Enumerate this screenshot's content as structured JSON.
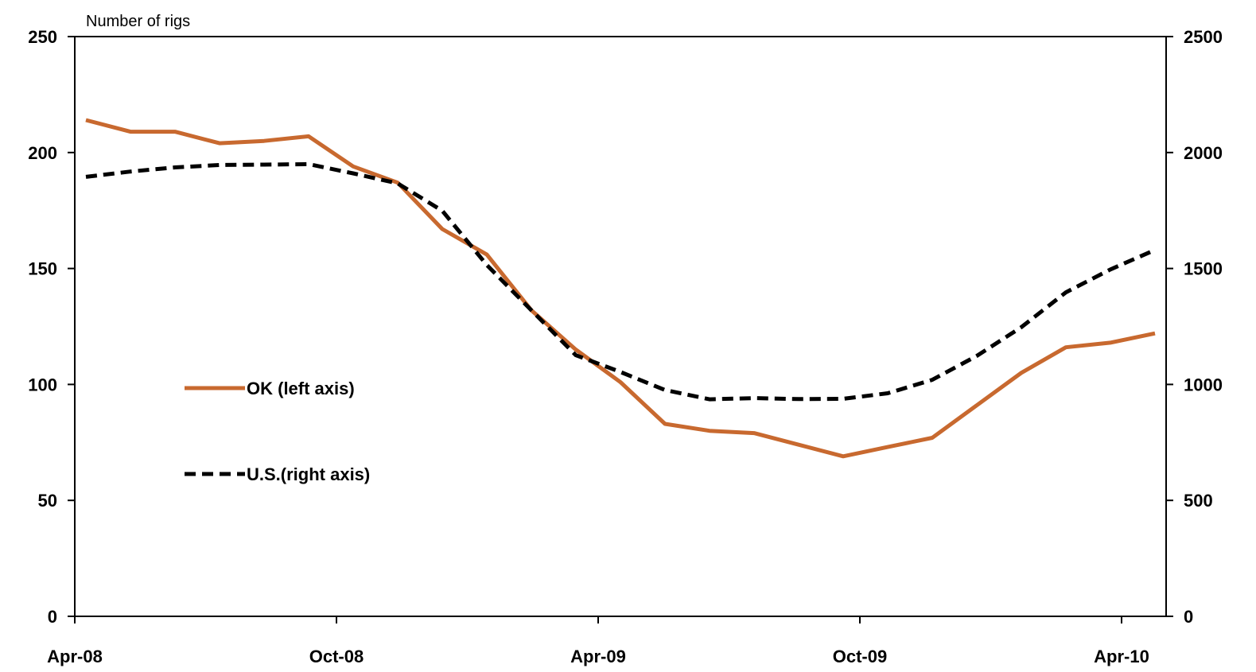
{
  "chart_data": {
    "type": "line",
    "title": "",
    "ylabel_left": "Number of rigs",
    "ylim_left": [
      0,
      250
    ],
    "yticks_left": [
      0,
      50,
      100,
      150,
      200,
      250
    ],
    "ylim_right": [
      0,
      2500
    ],
    "yticks_right": [
      0,
      500,
      1000,
      1500,
      2000,
      2500
    ],
    "x_tick_labels": [
      "Apr-08",
      "Oct-08",
      "Apr-09",
      "Oct-09",
      "Apr-10"
    ],
    "x": [
      "2008-04",
      "2008-05",
      "2008-06",
      "2008-07",
      "2008-08",
      "2008-09",
      "2008-10",
      "2008-11",
      "2008-12",
      "2009-01",
      "2009-02",
      "2009-03",
      "2009-04",
      "2009-05",
      "2009-06",
      "2009-07",
      "2009-08",
      "2009-09",
      "2009-10",
      "2009-11",
      "2009-12",
      "2010-01",
      "2010-02",
      "2010-03",
      "2010-04"
    ],
    "grid": false,
    "legend_position": "left-center",
    "series": [
      {
        "name": "OK (left axis)",
        "axis": "left",
        "style": "solid",
        "color": "#C8692F",
        "values": [
          214,
          209,
          209,
          204,
          205,
          207,
          194,
          187,
          167,
          156,
          132,
          115,
          101,
          83,
          80,
          79,
          74,
          69,
          73,
          77,
          91,
          105,
          116,
          118,
          122
        ]
      },
      {
        "name": "U.S.(right axis)",
        "axis": "right",
        "style": "dashed",
        "color": "#000000",
        "values": [
          1895,
          1918,
          1936,
          1946,
          1948,
          1950,
          1910,
          1867,
          1749,
          1515,
          1320,
          1126,
          1054,
          976,
          936,
          941,
          937,
          938,
          962,
          1020,
          1123,
          1247,
          1397,
          1496,
          1580
        ]
      }
    ]
  }
}
